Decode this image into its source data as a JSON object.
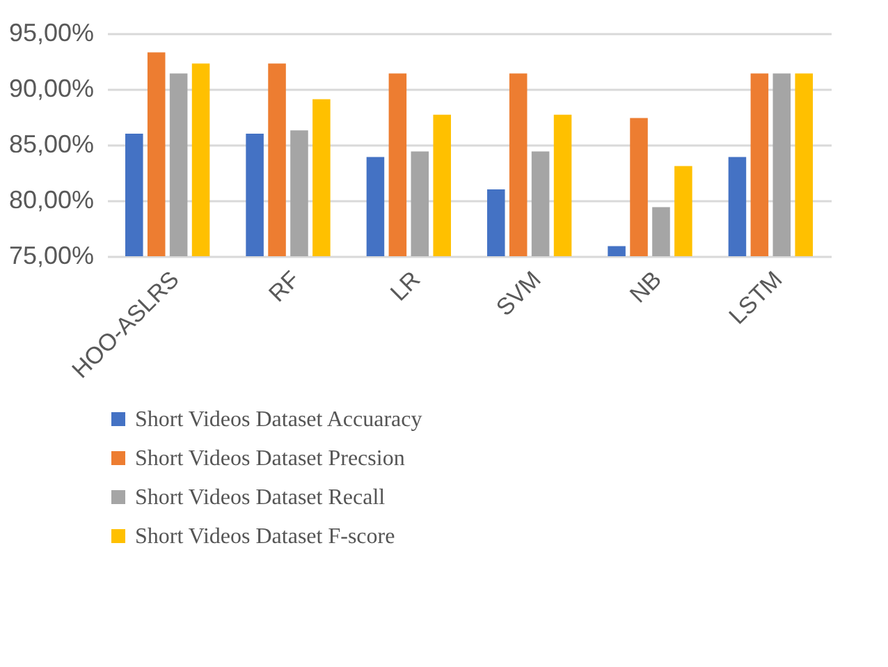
{
  "chart_data": {
    "type": "bar",
    "categories": [
      "HOO-ASLRS",
      "RF",
      "LR",
      "SVM",
      "NB",
      "LSTM"
    ],
    "series": [
      {
        "name": "Short Videos Dataset Accuaracy",
        "color": "#4472c4",
        "values": [
          86.0,
          86.0,
          83.9,
          81.0,
          75.9,
          83.9
        ]
      },
      {
        "name": "Short Videos Dataset Precsion",
        "color": "#ed7d31",
        "values": [
          93.3,
          92.3,
          91.4,
          91.4,
          87.4,
          91.4
        ]
      },
      {
        "name": "Short Videos Dataset Recall",
        "color": "#a5a5a5",
        "values": [
          91.4,
          86.3,
          84.4,
          84.4,
          79.4,
          91.4
        ]
      },
      {
        "name": "Short Videos Dataset F-score",
        "color": "#ffc000",
        "values": [
          92.3,
          89.1,
          87.7,
          87.7,
          83.1,
          91.4
        ]
      }
    ],
    "ylim": [
      75,
      95
    ],
    "yticks": [
      {
        "value": 75,
        "label": "75,00%"
      },
      {
        "value": 80,
        "label": "80,00%"
      },
      {
        "value": 85,
        "label": "85,00%"
      },
      {
        "value": 90,
        "label": "90,00%"
      },
      {
        "value": 95,
        "label": "95,00%"
      }
    ],
    "grid": "y",
    "legend": "bottom"
  }
}
